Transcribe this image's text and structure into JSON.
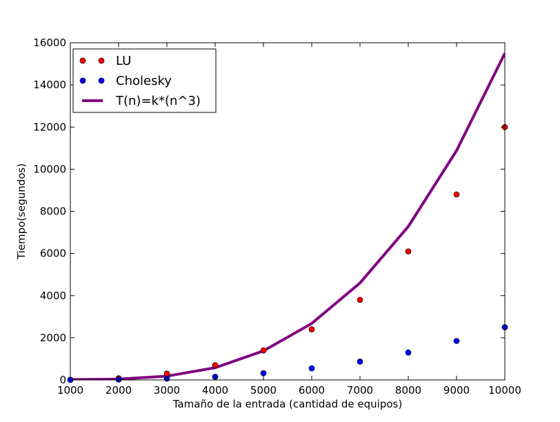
{
  "chart_data": {
    "type": "scatter",
    "xlabel": "Tamaño de la entrada (cantidad de equipos)",
    "ylabel": "Tiempo(segundos)",
    "xlim": [
      1000,
      10000
    ],
    "ylim": [
      0,
      16000
    ],
    "xticks": [
      1000,
      2000,
      3000,
      4000,
      5000,
      6000,
      7000,
      8000,
      9000,
      10000
    ],
    "yticks": [
      0,
      2000,
      4000,
      6000,
      8000,
      10000,
      12000,
      14000,
      16000
    ],
    "grid": false,
    "legend_position": "top-left",
    "series": [
      {
        "name": "LU",
        "kind": "markers",
        "color": "#ff0000",
        "x": [
          1000,
          2000,
          3000,
          4000,
          5000,
          6000,
          7000,
          8000,
          9000,
          10000
        ],
        "y": [
          10,
          80,
          300,
          700,
          1400,
          2400,
          3800,
          6100,
          8800,
          12000
        ]
      },
      {
        "name": "Cholesky",
        "kind": "markers",
        "color": "#0000ff",
        "x": [
          1000,
          2000,
          3000,
          4000,
          5000,
          6000,
          7000,
          8000,
          9000,
          10000
        ],
        "y": [
          2,
          20,
          60,
          150,
          320,
          550,
          870,
          1300,
          1850,
          2500
        ]
      },
      {
        "name": "T(n)=k*(n^3)",
        "kind": "line",
        "color": "#800080",
        "x": [
          1000,
          2000,
          3000,
          4000,
          5000,
          6000,
          7000,
          8000,
          9000,
          10000
        ],
        "y": [
          15,
          40,
          180,
          580,
          1380,
          2680,
          4600,
          7280,
          10880,
          15500
        ]
      }
    ]
  }
}
